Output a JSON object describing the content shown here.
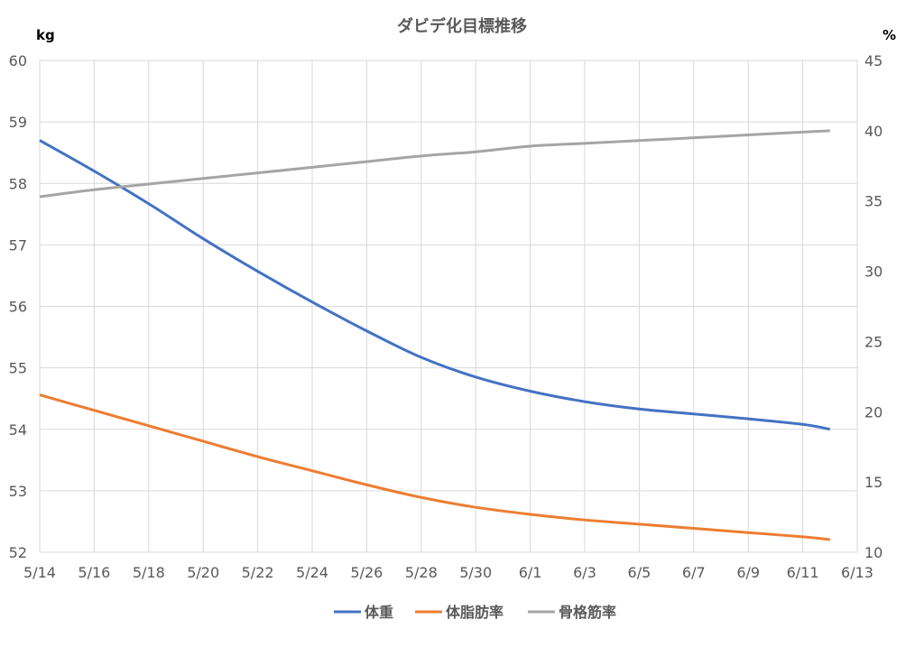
{
  "chart_data": {
    "type": "line",
    "title": "ダビデ化目標推移",
    "y_left_unit": "kg",
    "y_right_unit": "%",
    "ylim_left": [
      52,
      60
    ],
    "ylim_right": [
      10,
      45
    ],
    "y_left_ticks": [
      "52",
      "53",
      "54",
      "55",
      "56",
      "57",
      "58",
      "59",
      "60"
    ],
    "y_right_ticks": [
      "10",
      "15",
      "20",
      "25",
      "30",
      "35",
      "40",
      "45"
    ],
    "x_ticks": [
      "5/14",
      "5/16",
      "5/18",
      "5/20",
      "5/22",
      "5/24",
      "5/26",
      "5/28",
      "5/30",
      "6/1",
      "6/3",
      "6/5",
      "6/7",
      "6/9",
      "6/11",
      "6/13"
    ],
    "legend_position": "bottom",
    "series": [
      {
        "name": "体重",
        "axis": "left",
        "color": "#4472c4",
        "x": [
          "5/14",
          "5/16",
          "5/18",
          "5/20",
          "5/22",
          "5/24",
          "5/26",
          "5/28",
          "5/30",
          "6/1",
          "6/3",
          "6/5",
          "6/7",
          "6/9",
          "6/11",
          "6/12"
        ],
        "values": [
          58.7,
          58.2,
          57.67,
          57.1,
          56.57,
          56.07,
          55.6,
          55.17,
          54.85,
          54.62,
          54.45,
          54.33,
          54.25,
          54.17,
          54.08,
          54.0
        ]
      },
      {
        "name": "体脂肪率",
        "axis": "right",
        "color": "#ed7d31",
        "x": [
          "5/14",
          "5/16",
          "5/18",
          "5/20",
          "5/22",
          "5/24",
          "5/26",
          "5/28",
          "5/30",
          "6/1",
          "6/3",
          "6/5",
          "6/7",
          "6/9",
          "6/11",
          "6/12"
        ],
        "values": [
          21.2,
          20.1,
          19.0,
          17.9,
          16.8,
          15.8,
          14.8,
          13.9,
          13.2,
          12.7,
          12.3,
          12.0,
          11.7,
          11.4,
          11.1,
          10.9
        ]
      },
      {
        "name": "骨格筋率",
        "axis": "right",
        "color": "#a5a5a5",
        "x": [
          "5/14",
          "5/16",
          "5/18",
          "5/20",
          "5/22",
          "5/24",
          "5/26",
          "5/28",
          "5/30",
          "6/1",
          "6/3",
          "6/5",
          "6/7",
          "6/9",
          "6/11",
          "6/12"
        ],
        "values": [
          35.3,
          35.8,
          36.2,
          36.6,
          37.0,
          37.4,
          37.8,
          38.2,
          38.5,
          38.9,
          39.1,
          39.3,
          39.5,
          39.7,
          39.9,
          40.0
        ]
      }
    ]
  }
}
